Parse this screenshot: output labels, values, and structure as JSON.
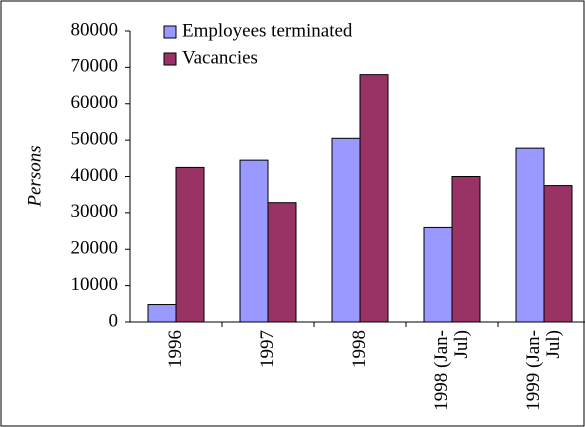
{
  "chart_data": {
    "type": "bar",
    "y_label": "Persons",
    "categories": [
      "1996",
      "1997",
      "1998",
      "1998 (Jan-Jul)",
      "1999 (Jan-Jul)"
    ],
    "series": [
      {
        "name": "Employees terminated",
        "color": "#9999ff",
        "values": [
          4800,
          44500,
          50500,
          26000,
          47800
        ]
      },
      {
        "name": "Vacancies",
        "color": "#993366",
        "values": [
          42500,
          32800,
          68000,
          40000,
          37500
        ]
      }
    ],
    "ylim": [
      0,
      80000
    ],
    "yticks": [
      0,
      10000,
      20000,
      30000,
      40000,
      50000,
      60000,
      70000,
      80000
    ]
  }
}
